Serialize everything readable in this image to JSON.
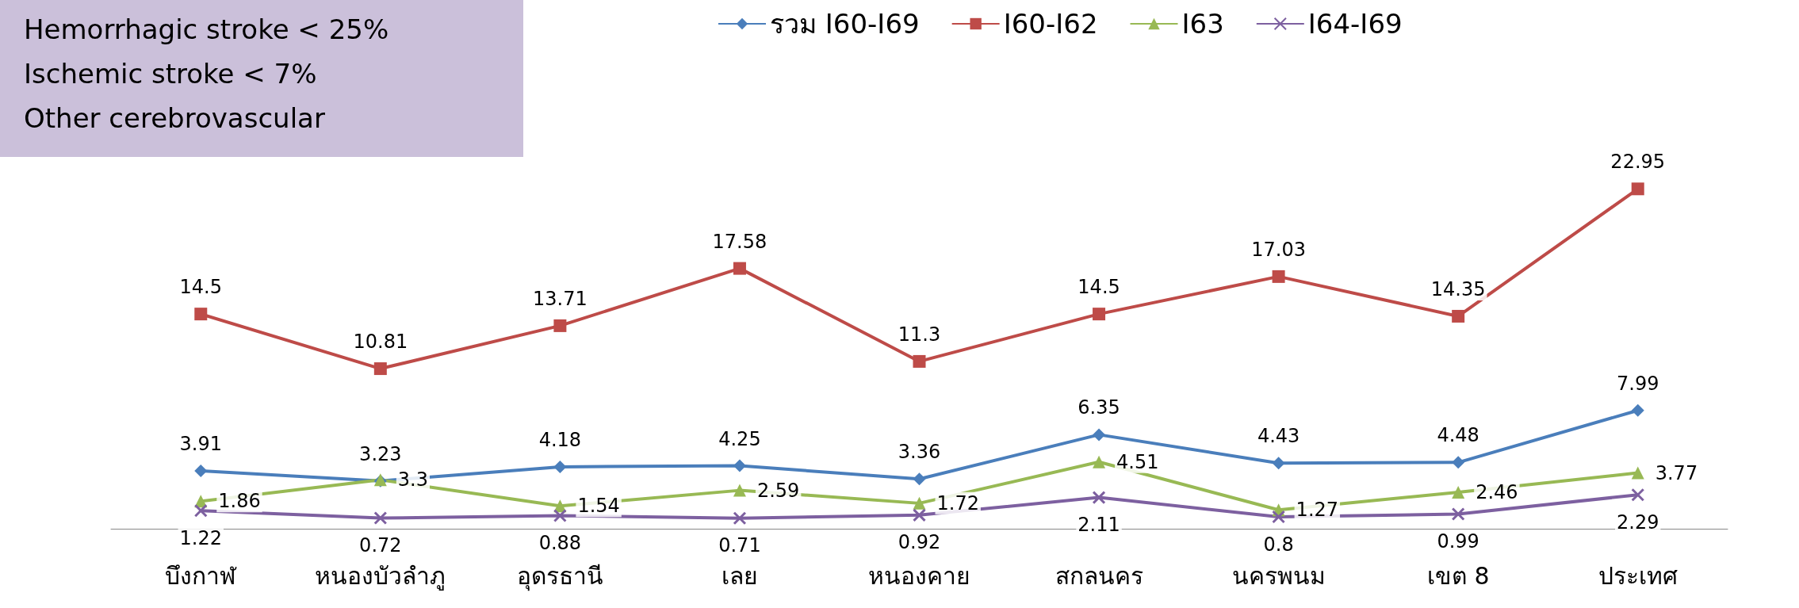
{
  "chart_data": {
    "type": "line",
    "categories": [
      "บึงกาฬ",
      "หนองบัวลำภู",
      "อุดรธานี",
      "เลย",
      "หนองคาย",
      "สกลนคร",
      "นครพนม",
      "เขต 8",
      "ประเทศ"
    ],
    "series": [
      {
        "name": "รวม I60-I69",
        "color": "#4a7ebb",
        "marker": "diamond",
        "values": [
          3.91,
          3.23,
          4.18,
          4.25,
          3.36,
          6.35,
          4.43,
          4.48,
          7.99
        ]
      },
      {
        "name": "I60-I62",
        "color": "#be4b48",
        "marker": "square",
        "values": [
          14.5,
          10.81,
          13.71,
          17.58,
          11.3,
          14.5,
          17.03,
          14.35,
          22.95
        ]
      },
      {
        "name": "I63",
        "color": "#98b954",
        "marker": "triangle",
        "values": [
          1.86,
          3.3,
          1.54,
          2.59,
          1.72,
          4.51,
          1.27,
          2.46,
          3.77
        ]
      },
      {
        "name": "I64-I69",
        "color": "#7d60a0",
        "marker": "cross",
        "values": [
          1.22,
          0.72,
          0.88,
          0.71,
          0.92,
          2.11,
          0.8,
          0.99,
          2.29
        ]
      }
    ],
    "data_labels": true,
    "legend": "top",
    "grid": false,
    "annotations": [
      "Hemorrhagic stroke < 25%",
      "Ischemic stroke < 7%",
      "Other cerebrovascular"
    ]
  }
}
